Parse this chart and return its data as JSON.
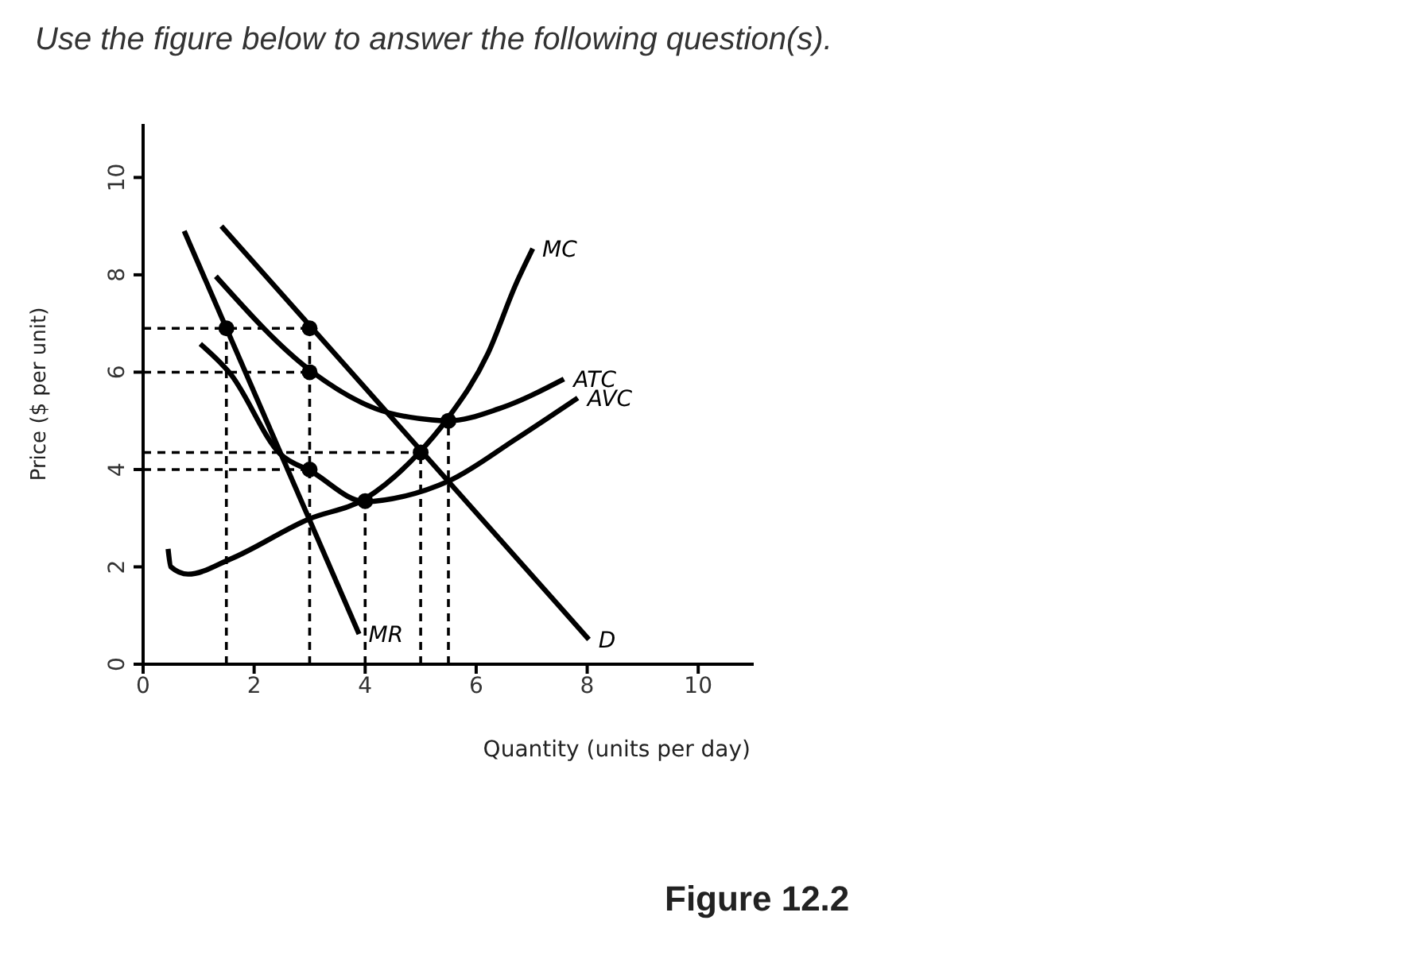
{
  "chart_data": {
    "type": "line",
    "title": "Use the figure below to answer the following question(s).",
    "xlabel": "Quantity (units per day)",
    "ylabel": "Price ($ per unit)",
    "annotations": [
      "Figure 12.2"
    ],
    "xlim": [
      0,
      11
    ],
    "xticks": [
      0,
      2,
      4,
      6,
      8,
      10
    ],
    "ylim": [
      0,
      11.1
    ],
    "yticks": [
      0,
      2,
      4,
      6,
      8,
      10
    ],
    "grid": false,
    "legend": false,
    "marker": "none",
    "series": [
      {
        "name": "D",
        "color": "#000000",
        "x": [
          1.41,
          8.03
        ],
        "values": [
          9.0,
          0.51
        ]
      },
      {
        "name": "MR",
        "color": "#000000",
        "x": [
          0.74,
          3.89
        ],
        "values": [
          8.9,
          0.62
        ]
      },
      {
        "name": "ATC",
        "color": "#000000",
        "x": [
          1.31,
          3.03,
          4.19,
          5.2,
          5.5,
          6.41,
          7.58
        ],
        "values": [
          7.97,
          6.02,
          5.25,
          5.02,
          5.0,
          5.25,
          5.86
        ]
      },
      {
        "name": "AVC",
        "color": "#000000",
        "x": [
          1.03,
          1.57,
          2.47,
          3.03,
          4.0,
          4.7,
          5.5,
          6.72,
          7.83
        ],
        "values": [
          6.58,
          5.97,
          4.32,
          3.96,
          3.34,
          3.45,
          3.76,
          4.63,
          5.47
        ]
      },
      {
        "name": "MC",
        "color": "#000000",
        "x": [
          0.45,
          0.5,
          0.81,
          1.57,
          2.98,
          4.0,
          4.95,
          5.48,
          6.21,
          6.72,
          7.02
        ],
        "values": [
          2.37,
          2.0,
          1.85,
          2.16,
          2.98,
          3.4,
          4.32,
          5.04,
          6.38,
          7.82,
          8.54
        ]
      },
      {
        "type": "scatter",
        "marker": "circle",
        "color": "#000000",
        "x": [
          1.5,
          3,
          3,
          3,
          4,
          5,
          5.5
        ],
        "values": [
          6.9,
          6.9,
          6.0,
          4.0,
          3.35,
          4.35,
          5.0
        ]
      },
      {
        "type": "line",
        "line_style": "dashed",
        "color": "#000000",
        "x": [
          0,
          3
        ],
        "values": [
          6.9,
          6.9
        ]
      },
      {
        "type": "line",
        "line_style": "dashed",
        "color": "#000000",
        "x": [
          0,
          3
        ],
        "values": [
          6.0,
          6.0
        ]
      },
      {
        "type": "line",
        "line_style": "dashed",
        "color": "#000000",
        "x": [
          0,
          5
        ],
        "values": [
          4.35,
          4.35
        ]
      },
      {
        "type": "line",
        "line_style": "dashed",
        "color": "#000000",
        "x": [
          0,
          3
        ],
        "values": [
          4.0,
          4.0
        ]
      },
      {
        "type": "line",
        "line_style": "dashed",
        "color": "#000000",
        "x": [
          1.5,
          1.5
        ],
        "values": [
          0,
          6.9
        ]
      },
      {
        "type": "line",
        "line_style": "dashed",
        "color": "#000000",
        "x": [
          3,
          3
        ],
        "values": [
          0,
          6.9
        ]
      },
      {
        "type": "line",
        "line_style": "dashed",
        "color": "#000000",
        "x": [
          4,
          4
        ],
        "values": [
          0,
          3.35
        ]
      },
      {
        "type": "line",
        "line_style": "dashed",
        "color": "#000000",
        "x": [
          5,
          5
        ],
        "values": [
          0,
          4.35
        ]
      },
      {
        "type": "line",
        "line_style": "dashed",
        "color": "#000000",
        "x": [
          5.5,
          5.5
        ],
        "values": [
          0,
          5.0
        ]
      }
    ]
  }
}
